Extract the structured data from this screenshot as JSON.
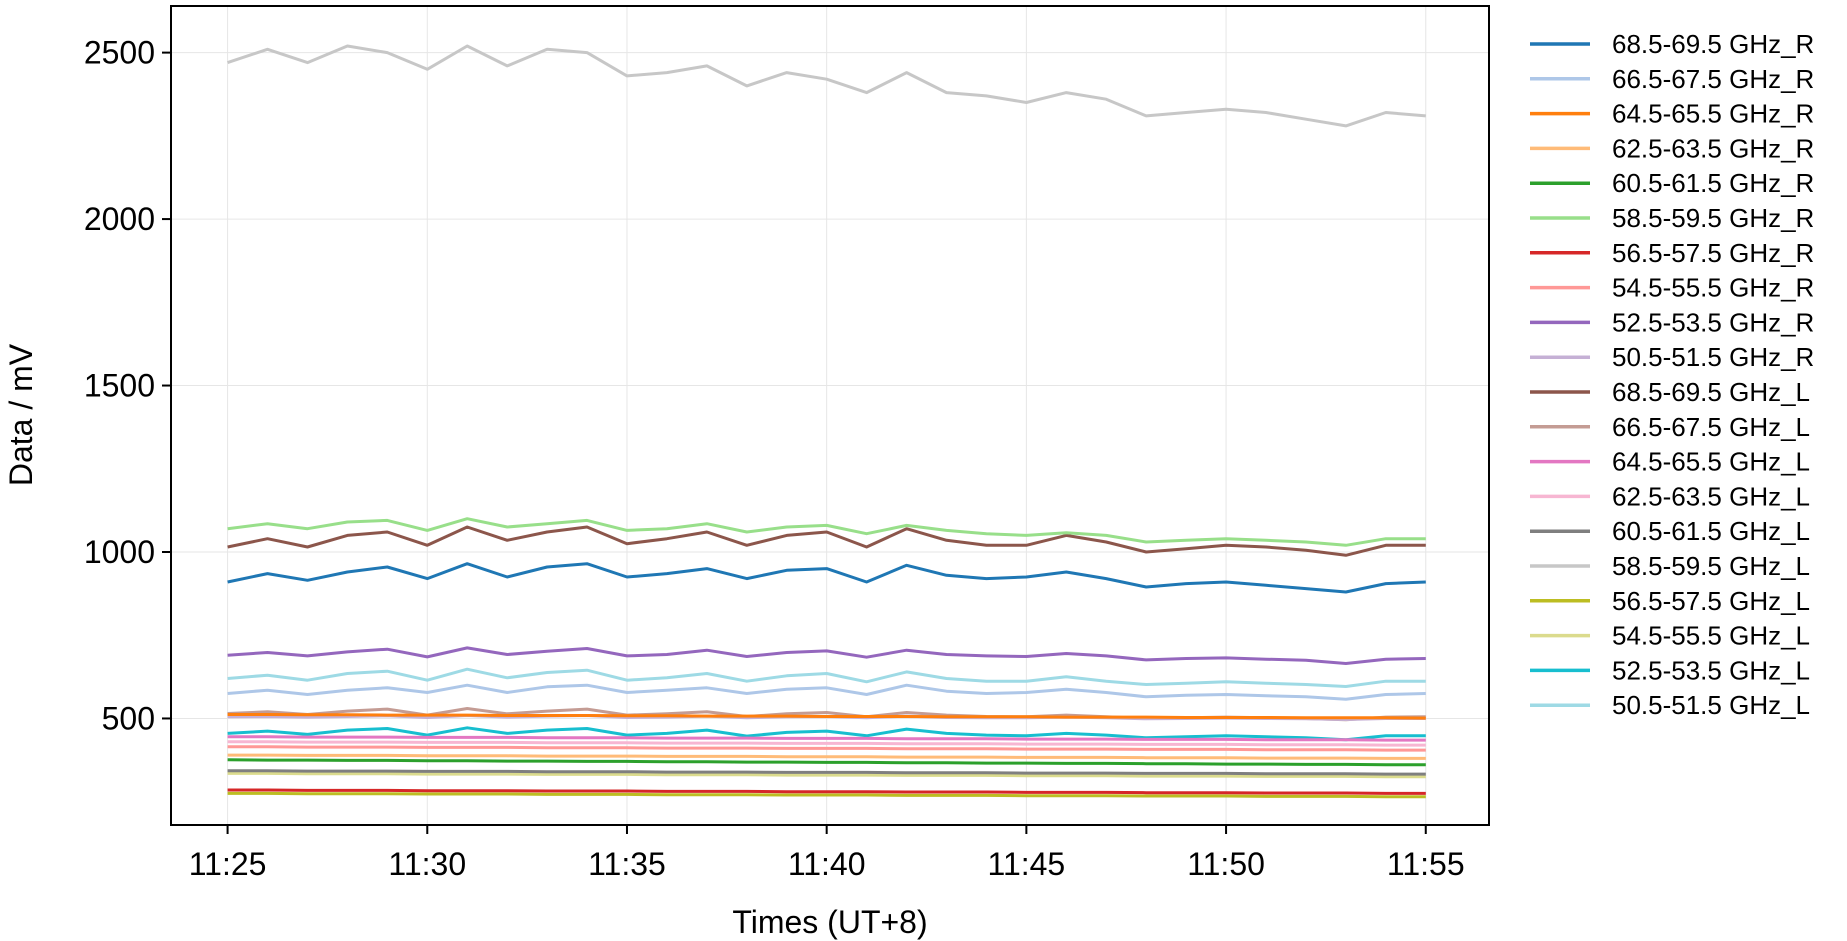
{
  "chart_data": {
    "type": "line",
    "title": "",
    "xlabel": "Times (UT+8)",
    "ylabel": "Data / mV",
    "x_ticks": [
      "11:25",
      "11:30",
      "11:35",
      "11:40",
      "11:45",
      "11:50",
      "11:55"
    ],
    "x_tick_minutes": [
      25,
      30,
      35,
      40,
      45,
      50,
      55
    ],
    "y_ticks": [
      500,
      1000,
      1500,
      2000,
      2500
    ],
    "xlim": [
      "11:23:35",
      "11:56:35"
    ],
    "ylim": [
      180,
      2640
    ],
    "grid": true,
    "legend_position": "outside-right",
    "x": [
      "11:25",
      "11:26",
      "11:27",
      "11:28",
      "11:29",
      "11:30",
      "11:31",
      "11:32",
      "11:33",
      "11:34",
      "11:35",
      "11:36",
      "11:37",
      "11:38",
      "11:39",
      "11:40",
      "11:41",
      "11:42",
      "11:43",
      "11:44",
      "11:45",
      "11:46",
      "11:47",
      "11:48",
      "11:49",
      "11:50",
      "11:51",
      "11:52",
      "11:53",
      "11:54",
      "11:55"
    ],
    "series": [
      {
        "name": "68.5-69.5 GHz_R",
        "color": "#1f77b4",
        "values": [
          910,
          935,
          915,
          940,
          955,
          920,
          965,
          925,
          955,
          965,
          925,
          935,
          950,
          920,
          945,
          950,
          910,
          960,
          930,
          920,
          925,
          940,
          920,
          895,
          905,
          910,
          900,
          890,
          880,
          905,
          910
        ]
      },
      {
        "name": "66.5-67.5 GHz_R",
        "color": "#aec7e8",
        "values": [
          575,
          585,
          572,
          585,
          592,
          578,
          600,
          578,
          595,
          600,
          578,
          585,
          592,
          575,
          588,
          592,
          572,
          600,
          582,
          575,
          578,
          588,
          578,
          565,
          570,
          572,
          568,
          565,
          558,
          572,
          575
        ]
      },
      {
        "name": "64.5-65.5 GHz_R",
        "color": "#ff7f0e",
        "values": [
          512,
          512,
          511,
          511,
          510,
          510,
          510,
          509,
          509,
          509,
          508,
          508,
          507,
          507,
          507,
          506,
          506,
          506,
          505,
          505,
          505,
          504,
          504,
          504,
          503,
          503,
          503,
          502,
          502,
          502,
          501
        ]
      },
      {
        "name": "62.5-63.5 GHz_R",
        "color": "#ffbb78",
        "values": [
          390,
          390,
          389,
          389,
          389,
          388,
          388,
          388,
          387,
          387,
          387,
          386,
          386,
          386,
          385,
          385,
          385,
          384,
          384,
          384,
          383,
          383,
          383,
          382,
          382,
          382,
          381,
          381,
          381,
          380,
          380
        ]
      },
      {
        "name": "60.5-61.5 GHz_R",
        "color": "#2ca02c",
        "values": [
          376,
          375,
          375,
          374,
          374,
          373,
          373,
          372,
          372,
          371,
          371,
          370,
          370,
          369,
          369,
          368,
          368,
          367,
          367,
          366,
          366,
          365,
          365,
          364,
          364,
          363,
          363,
          362,
          362,
          361,
          361
        ]
      },
      {
        "name": "58.5-59.5 GHz_R",
        "color": "#98df8a",
        "values": [
          1070,
          1085,
          1070,
          1090,
          1095,
          1065,
          1100,
          1075,
          1085,
          1095,
          1065,
          1070,
          1085,
          1060,
          1075,
          1080,
          1055,
          1080,
          1065,
          1055,
          1050,
          1058,
          1050,
          1030,
          1035,
          1040,
          1035,
          1030,
          1020,
          1040,
          1040
        ]
      },
      {
        "name": "56.5-57.5 GHz_R",
        "color": "#d62728",
        "values": [
          285,
          285,
          284,
          284,
          284,
          283,
          283,
          283,
          282,
          282,
          282,
          281,
          281,
          281,
          280,
          280,
          280,
          279,
          279,
          279,
          278,
          278,
          278,
          277,
          277,
          277,
          276,
          276,
          276,
          275,
          275
        ]
      },
      {
        "name": "54.5-55.5 GHz_R",
        "color": "#ff9896",
        "values": [
          415,
          415,
          414,
          414,
          414,
          413,
          413,
          413,
          412,
          412,
          412,
          411,
          411,
          411,
          410,
          410,
          410,
          409,
          409,
          409,
          408,
          408,
          408,
          407,
          407,
          407,
          406,
          406,
          406,
          405,
          405
        ]
      },
      {
        "name": "52.5-53.5 GHz_R",
        "color": "#9467bd",
        "values": [
          690,
          698,
          688,
          700,
          708,
          685,
          712,
          692,
          702,
          710,
          688,
          692,
          705,
          686,
          698,
          703,
          684,
          705,
          692,
          688,
          686,
          695,
          688,
          676,
          680,
          682,
          678,
          675,
          665,
          678,
          680
        ]
      },
      {
        "name": "50.5-51.5 GHz_R",
        "color": "#c5b0d5",
        "values": [
          505,
          506,
          504,
          506,
          508,
          503,
          509,
          504,
          507,
          509,
          503,
          504,
          507,
          502,
          505,
          506,
          502,
          507,
          503,
          502,
          502,
          504,
          502,
          499,
          500,
          501,
          500,
          499,
          497,
          500,
          500
        ]
      },
      {
        "name": "68.5-69.5 GHz_L",
        "color": "#8c564b",
        "values": [
          1015,
          1040,
          1015,
          1050,
          1060,
          1020,
          1075,
          1035,
          1060,
          1075,
          1025,
          1040,
          1060,
          1020,
          1050,
          1060,
          1015,
          1070,
          1035,
          1020,
          1020,
          1050,
          1030,
          1000,
          1010,
          1020,
          1015,
          1005,
          990,
          1020,
          1020
        ]
      },
      {
        "name": "66.5-67.5 GHz_L",
        "color": "#c49c94",
        "values": [
          515,
          520,
          512,
          522,
          528,
          510,
          530,
          514,
          522,
          528,
          510,
          514,
          520,
          506,
          514,
          518,
          505,
          518,
          510,
          506,
          505,
          510,
          505,
          500,
          502,
          504,
          502,
          500,
          496,
          504,
          505
        ]
      },
      {
        "name": "64.5-65.5 GHz_L",
        "color": "#e377c2",
        "values": [
          445,
          445,
          444,
          444,
          444,
          443,
          443,
          443,
          442,
          442,
          442,
          441,
          441,
          441,
          440,
          440,
          440,
          439,
          439,
          439,
          438,
          438,
          438,
          437,
          437,
          437,
          436,
          436,
          436,
          435,
          435
        ]
      },
      {
        "name": "62.5-63.5 GHz_L",
        "color": "#f7b6d2",
        "values": [
          430,
          430,
          429,
          429,
          429,
          428,
          428,
          428,
          427,
          427,
          427,
          426,
          426,
          426,
          425,
          425,
          425,
          424,
          424,
          424,
          423,
          423,
          423,
          422,
          422,
          422,
          421,
          421,
          421,
          420,
          420
        ]
      },
      {
        "name": "60.5-61.5 GHz_L",
        "color": "#7f7f7f",
        "values": [
          343,
          343,
          342,
          342,
          342,
          341,
          341,
          341,
          340,
          340,
          340,
          339,
          339,
          339,
          338,
          338,
          338,
          337,
          337,
          337,
          336,
          336,
          336,
          335,
          335,
          335,
          334,
          334,
          334,
          333,
          333
        ]
      },
      {
        "name": "58.5-59.5 GHz_L",
        "color": "#c7c7c7",
        "values": [
          2470,
          2510,
          2470,
          2520,
          2500,
          2450,
          2520,
          2460,
          2510,
          2500,
          2430,
          2440,
          2460,
          2400,
          2440,
          2420,
          2380,
          2440,
          2380,
          2370,
          2350,
          2380,
          2360,
          2310,
          2320,
          2330,
          2320,
          2300,
          2280,
          2320,
          2310
        ]
      },
      {
        "name": "56.5-57.5 GHz_L",
        "color": "#bcbd22",
        "values": [
          275,
          275,
          274,
          274,
          274,
          273,
          273,
          273,
          272,
          272,
          272,
          271,
          271,
          271,
          270,
          270,
          270,
          269,
          269,
          269,
          268,
          268,
          268,
          267,
          267,
          267,
          266,
          266,
          266,
          265,
          265
        ]
      },
      {
        "name": "54.5-55.5 GHz_L",
        "color": "#dbdb8d",
        "values": [
          335,
          335,
          334,
          334,
          334,
          333,
          333,
          333,
          332,
          332,
          332,
          331,
          331,
          331,
          330,
          330,
          330,
          329,
          329,
          329,
          328,
          328,
          328,
          327,
          327,
          327,
          326,
          326,
          326,
          325,
          325
        ]
      },
      {
        "name": "52.5-53.5 GHz_L",
        "color": "#17becf",
        "values": [
          455,
          462,
          452,
          465,
          470,
          450,
          472,
          455,
          465,
          470,
          450,
          455,
          465,
          447,
          458,
          462,
          448,
          468,
          455,
          450,
          448,
          455,
          450,
          442,
          445,
          448,
          445,
          442,
          436,
          448,
          448
        ]
      },
      {
        "name": "50.5-51.5 GHz_L",
        "color": "#9edae5",
        "values": [
          620,
          630,
          615,
          635,
          642,
          615,
          648,
          622,
          638,
          645,
          615,
          622,
          635,
          612,
          628,
          635,
          610,
          640,
          620,
          612,
          612,
          625,
          612,
          602,
          606,
          610,
          606,
          602,
          596,
          612,
          612
        ]
      }
    ]
  }
}
